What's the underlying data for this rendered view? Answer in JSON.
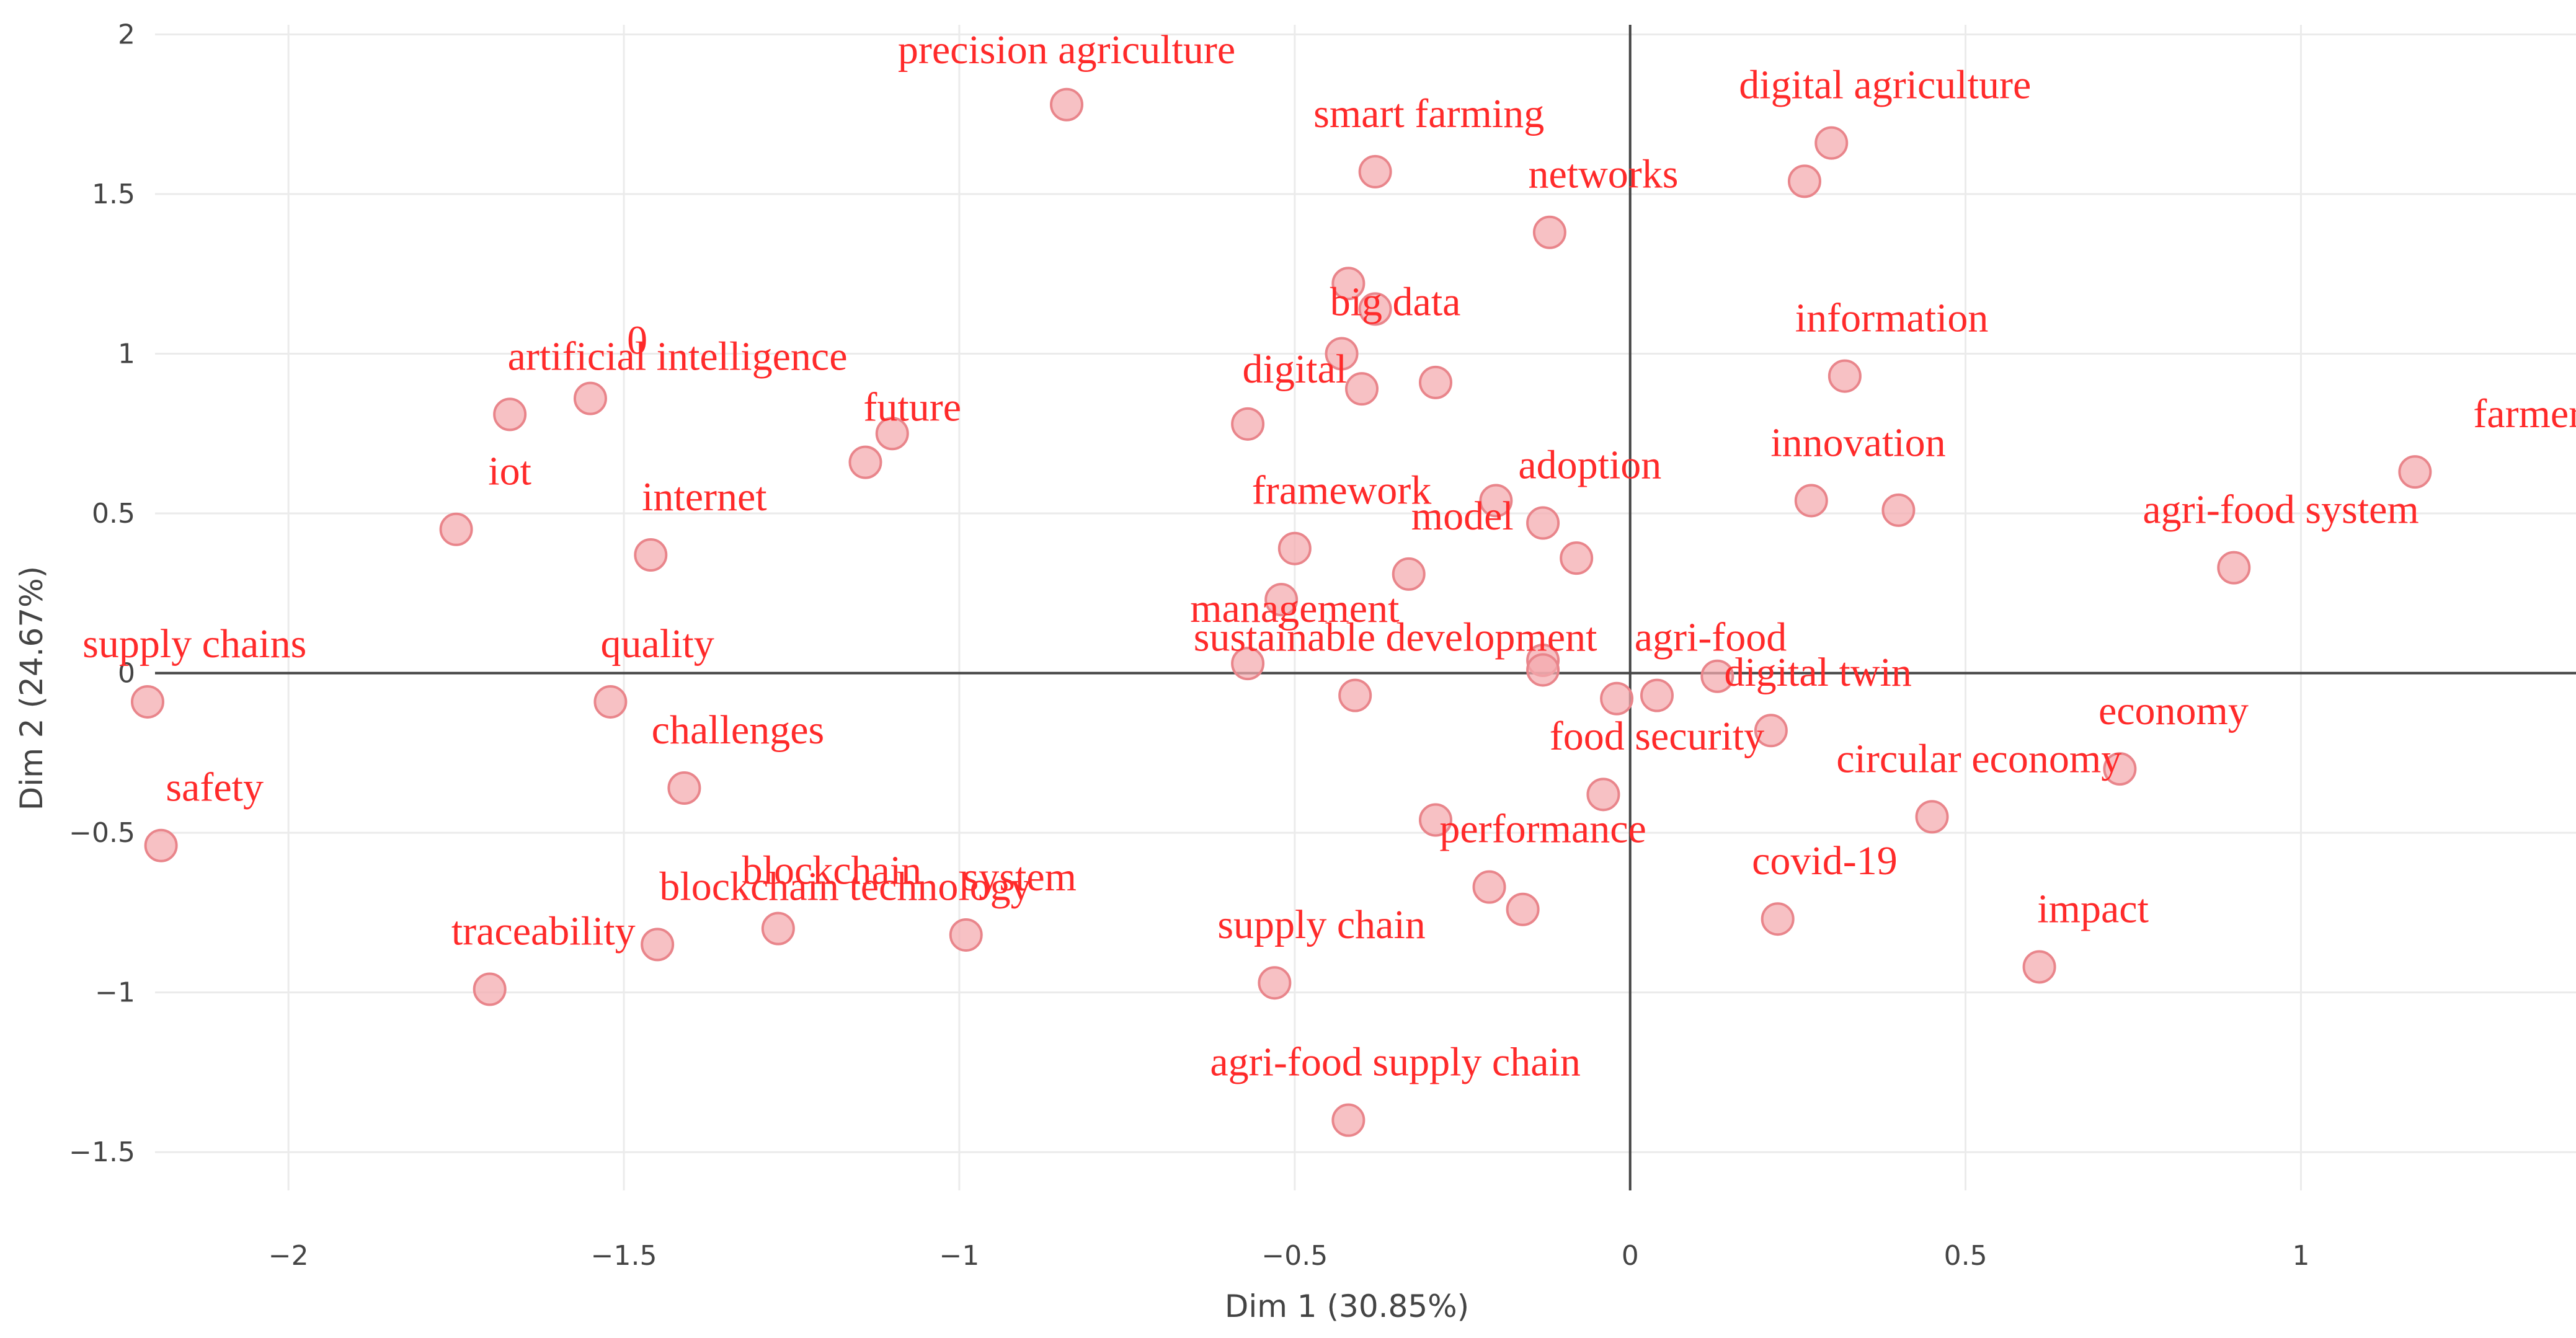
{
  "chart_data": {
    "type": "scatter",
    "xlabel": "Dim 1 (30.85%)",
    "ylabel": "Dim 2 (24.67%)",
    "xlim": [
      -2.43,
      1.41
    ],
    "ylim": [
      -1.62,
      2.03
    ],
    "xticks": [
      -2,
      -1.5,
      -1,
      -0.5,
      0,
      0.5,
      1
    ],
    "xtick_labels": [
      "−2",
      "−1.5",
      "−1",
      "−0.5",
      "0",
      "0.5",
      "1"
    ],
    "yticks": [
      -1.5,
      -1,
      -0.5,
      0,
      0.5,
      1,
      1.5,
      2
    ],
    "ytick_labels": [
      "−1.5",
      "−1",
      "−0.5",
      "0",
      "0.5",
      "1",
      "1.5",
      "2"
    ],
    "grid": true,
    "marker_color": "#f4a9ad",
    "label_color": "#ff2a2a",
    "points": [
      {
        "x": -0.84,
        "y": 1.78
      },
      {
        "x": -0.38,
        "y": 1.57
      },
      {
        "x": 0.3,
        "y": 1.66
      },
      {
        "x": 0.26,
        "y": 1.54
      },
      {
        "x": -0.12,
        "y": 1.38
      },
      {
        "x": -0.42,
        "y": 1.22
      },
      {
        "x": -0.38,
        "y": 1.14
      },
      {
        "x": -0.43,
        "y": 1.0
      },
      {
        "x": -0.4,
        "y": 0.89
      },
      {
        "x": -0.29,
        "y": 0.91
      },
      {
        "x": -0.57,
        "y": 0.78
      },
      {
        "x": 0.32,
        "y": 0.93
      },
      {
        "x": -1.67,
        "y": 0.81
      },
      {
        "x": -1.55,
        "y": 0.86
      },
      {
        "x": -1.1,
        "y": 0.75
      },
      {
        "x": -1.14,
        "y": 0.66
      },
      {
        "x": 1.17,
        "y": 0.63
      },
      {
        "x": 0.27,
        "y": 0.54
      },
      {
        "x": 0.4,
        "y": 0.51
      },
      {
        "x": -1.75,
        "y": 0.45
      },
      {
        "x": -1.46,
        "y": 0.37
      },
      {
        "x": -0.2,
        "y": 0.54
      },
      {
        "x": -0.13,
        "y": 0.47
      },
      {
        "x": -0.5,
        "y": 0.39
      },
      {
        "x": -0.08,
        "y": 0.36
      },
      {
        "x": -0.33,
        "y": 0.31
      },
      {
        "x": 0.9,
        "y": 0.33
      },
      {
        "x": -0.52,
        "y": 0.23
      },
      {
        "x": -0.57,
        "y": 0.03
      },
      {
        "x": -0.13,
        "y": 0.04
      },
      {
        "x": -0.13,
        "y": 0.01
      },
      {
        "x": 0.13,
        "y": -0.01
      },
      {
        "x": -0.41,
        "y": -0.07
      },
      {
        "x": -0.02,
        "y": -0.08
      },
      {
        "x": 0.04,
        "y": -0.07
      },
      {
        "x": -2.21,
        "y": -0.09
      },
      {
        "x": -1.52,
        "y": -0.09
      },
      {
        "x": 0.21,
        "y": -0.18
      },
      {
        "x": 0.73,
        "y": -0.3
      },
      {
        "x": -0.04,
        "y": -0.38
      },
      {
        "x": -1.41,
        "y": -0.36
      },
      {
        "x": 0.45,
        "y": -0.45
      },
      {
        "x": -0.29,
        "y": -0.46
      },
      {
        "x": -2.19,
        "y": -0.54
      },
      {
        "x": -0.21,
        "y": -0.67
      },
      {
        "x": -0.16,
        "y": -0.74
      },
      {
        "x": 0.22,
        "y": -0.77
      },
      {
        "x": -1.27,
        "y": -0.8
      },
      {
        "x": -0.99,
        "y": -0.82
      },
      {
        "x": -1.45,
        "y": -0.85
      },
      {
        "x": 0.61,
        "y": -0.92
      },
      {
        "x": -0.53,
        "y": -0.97
      },
      {
        "x": -1.7,
        "y": -0.99
      },
      {
        "x": -0.42,
        "y": -1.4
      }
    ],
    "labels": [
      {
        "text": "precision agriculture",
        "x": -0.84,
        "y": 1.91
      },
      {
        "text": "smart farming",
        "x": -0.3,
        "y": 1.71
      },
      {
        "text": "digital agriculture",
        "x": 0.38,
        "y": 1.8
      },
      {
        "text": "networks",
        "x": -0.04,
        "y": 1.52
      },
      {
        "text": "big data",
        "x": -0.35,
        "y": 1.12
      },
      {
        "text": "digital",
        "x": -0.5,
        "y": 0.91
      },
      {
        "text": "information",
        "x": 0.39,
        "y": 1.07
      },
      {
        "text": "0",
        "x": -1.48,
        "y": 1.0
      },
      {
        "text": "artificial intelligence",
        "x": -1.42,
        "y": 0.95
      },
      {
        "text": "future",
        "x": -1.07,
        "y": 0.79
      },
      {
        "text": "farmers",
        "x": 1.35,
        "y": 0.77
      },
      {
        "text": "innovation",
        "x": 0.34,
        "y": 0.68
      },
      {
        "text": "iot",
        "x": -1.67,
        "y": 0.59
      },
      {
        "text": "internet",
        "x": -1.38,
        "y": 0.51
      },
      {
        "text": "adoption",
        "x": -0.06,
        "y": 0.61
      },
      {
        "text": "framework",
        "x": -0.43,
        "y": 0.53
      },
      {
        "text": "model",
        "x": -0.25,
        "y": 0.45
      },
      {
        "text": "agri-food system",
        "x": 0.97,
        "y": 0.47
      },
      {
        "text": "management",
        "x": -0.5,
        "y": 0.16
      },
      {
        "text": "sustainable development",
        "x": -0.35,
        "y": 0.07
      },
      {
        "text": "agri-food",
        "x": 0.12,
        "y": 0.07
      },
      {
        "text": "supply chains",
        "x": -2.14,
        "y": 0.05
      },
      {
        "text": "quality",
        "x": -1.45,
        "y": 0.05
      },
      {
        "text": "digital twin",
        "x": 0.28,
        "y": -0.04
      },
      {
        "text": "economy",
        "x": 0.81,
        "y": -0.16
      },
      {
        "text": "food security",
        "x": 0.04,
        "y": -0.24
      },
      {
        "text": "challenges",
        "x": -1.33,
        "y": -0.22
      },
      {
        "text": "circular economy",
        "x": 0.52,
        "y": -0.31
      },
      {
        "text": "safety",
        "x": -2.11,
        "y": -0.4
      },
      {
        "text": "performance",
        "x": -0.13,
        "y": -0.53
      },
      {
        "text": "covid-19",
        "x": 0.29,
        "y": -0.63
      },
      {
        "text": "blockchain technology",
        "x": -1.17,
        "y": -0.71
      },
      {
        "text": "blockchain",
        "x": -1.19,
        "y": -0.66
      },
      {
        "text": "system",
        "x": -0.91,
        "y": -0.68
      },
      {
        "text": "traceability",
        "x": -1.62,
        "y": -0.85
      },
      {
        "text": "impact",
        "x": 0.69,
        "y": -0.78
      },
      {
        "text": "supply chain",
        "x": -0.46,
        "y": -0.83
      },
      {
        "text": "agri-food supply chain",
        "x": -0.35,
        "y": -1.26
      }
    ]
  }
}
